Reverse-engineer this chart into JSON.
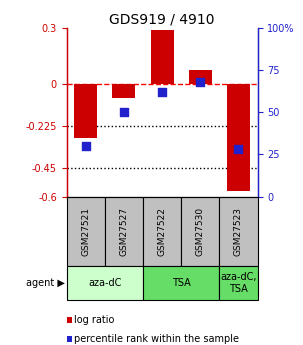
{
  "title": "GDS919 / 4910",
  "samples": [
    "GSM27521",
    "GSM27527",
    "GSM27522",
    "GSM27530",
    "GSM27523"
  ],
  "log_ratios": [
    -0.29,
    -0.075,
    0.285,
    0.075,
    -0.57
  ],
  "percentile_ranks": [
    30,
    50,
    62,
    68,
    28
  ],
  "ylim_left": [
    -0.6,
    0.3
  ],
  "ylim_right": [
    0,
    100
  ],
  "yticks_left": [
    0.3,
    0,
    -0.225,
    -0.45,
    -0.6
  ],
  "yticks_right": [
    100,
    75,
    50,
    25,
    0
  ],
  "hlines": [
    0,
    -0.225,
    -0.45
  ],
  "hline_styles": [
    "dashed",
    "dotted",
    "dotted"
  ],
  "hline_colors": [
    "red",
    "black",
    "black"
  ],
  "bar_color": "#cc0000",
  "dot_color": "#2222cc",
  "bar_width": 0.6,
  "dot_size": 28,
  "agent_groups": [
    {
      "label": "aza-dC",
      "start": 0,
      "end": 1,
      "span": 2,
      "color": "#ccffcc"
    },
    {
      "label": "TSA",
      "start": 2,
      "end": 3,
      "span": 2,
      "color": "#66dd66"
    },
    {
      "label": "aza-dC,\nTSA",
      "start": 4,
      "end": 4,
      "span": 1,
      "color": "#66dd66"
    }
  ],
  "sample_bg_color": "#c0c0c0",
  "legend_items": [
    {
      "color": "#cc0000",
      "label": "log ratio"
    },
    {
      "color": "#2222cc",
      "label": "percentile rank within the sample"
    }
  ],
  "left_tick_color": "#cc0000",
  "right_tick_color": "#2222cc",
  "left_spine_color": "#cc0000",
  "right_spine_color": "#2222cc"
}
